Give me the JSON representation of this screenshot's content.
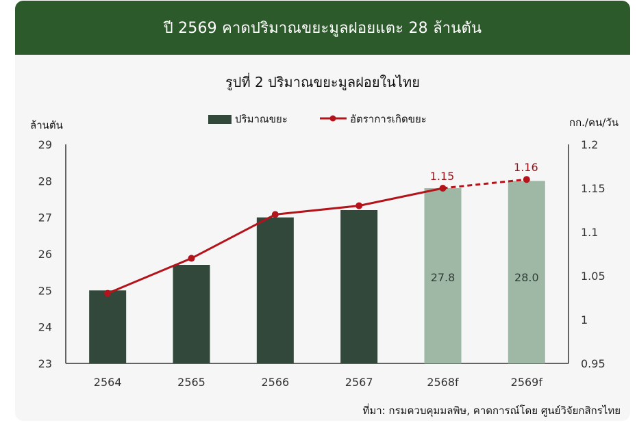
{
  "banner": {
    "text": "ปี 2569 คาดปริมาณขยะมูลฝอยแตะ 28 ล้านตัน"
  },
  "source": "ที่มา: กรมควบคุมมลพิษ, คาดการณ์โดย ศูนย์วิจัยกสิกรไทย",
  "colors": {
    "banner": "#2d5a2b",
    "bar_actual": "#32483b",
    "bar_forecast": "#9fb8a6",
    "line": "#b3141b",
    "forecast_label": "#9b1117"
  },
  "chart_data": {
    "type": "bar",
    "title": "รูปที่ 2 ปริมาณขยะมูลฝอยในไทย",
    "categories": [
      "2564",
      "2565",
      "2566",
      "2567",
      "2568f",
      "2569f"
    ],
    "series": [
      {
        "name": "ปริมาณขยะ",
        "type": "bar",
        "axis": "left",
        "values": [
          25.0,
          25.7,
          27.0,
          27.2,
          27.8,
          28.0
        ],
        "forecast": [
          false,
          false,
          false,
          false,
          true,
          true
        ],
        "data_labels": [
          "",
          "",
          "",
          "",
          "27.8",
          "28.0"
        ]
      },
      {
        "name": "อัตราการเกิดขยะ",
        "type": "line",
        "axis": "right",
        "values": [
          1.03,
          1.07,
          1.12,
          1.13,
          1.15,
          1.16
        ],
        "dashed_from_index": 4,
        "data_labels": [
          "",
          "",
          "",
          "",
          "1.15",
          "1.16"
        ]
      }
    ],
    "y_left": {
      "label": "ล้านตัน",
      "lim": [
        23,
        29
      ],
      "ticks": [
        "23",
        "24",
        "25",
        "26",
        "27",
        "28",
        "29"
      ]
    },
    "y_right": {
      "label": "กก./คน/วัน",
      "lim": [
        0.95,
        1.2
      ],
      "ticks": [
        "0.95",
        "1",
        "1.05",
        "1.1",
        "1.15",
        "1.2"
      ]
    },
    "grid": false,
    "legend_position": "top-center"
  }
}
